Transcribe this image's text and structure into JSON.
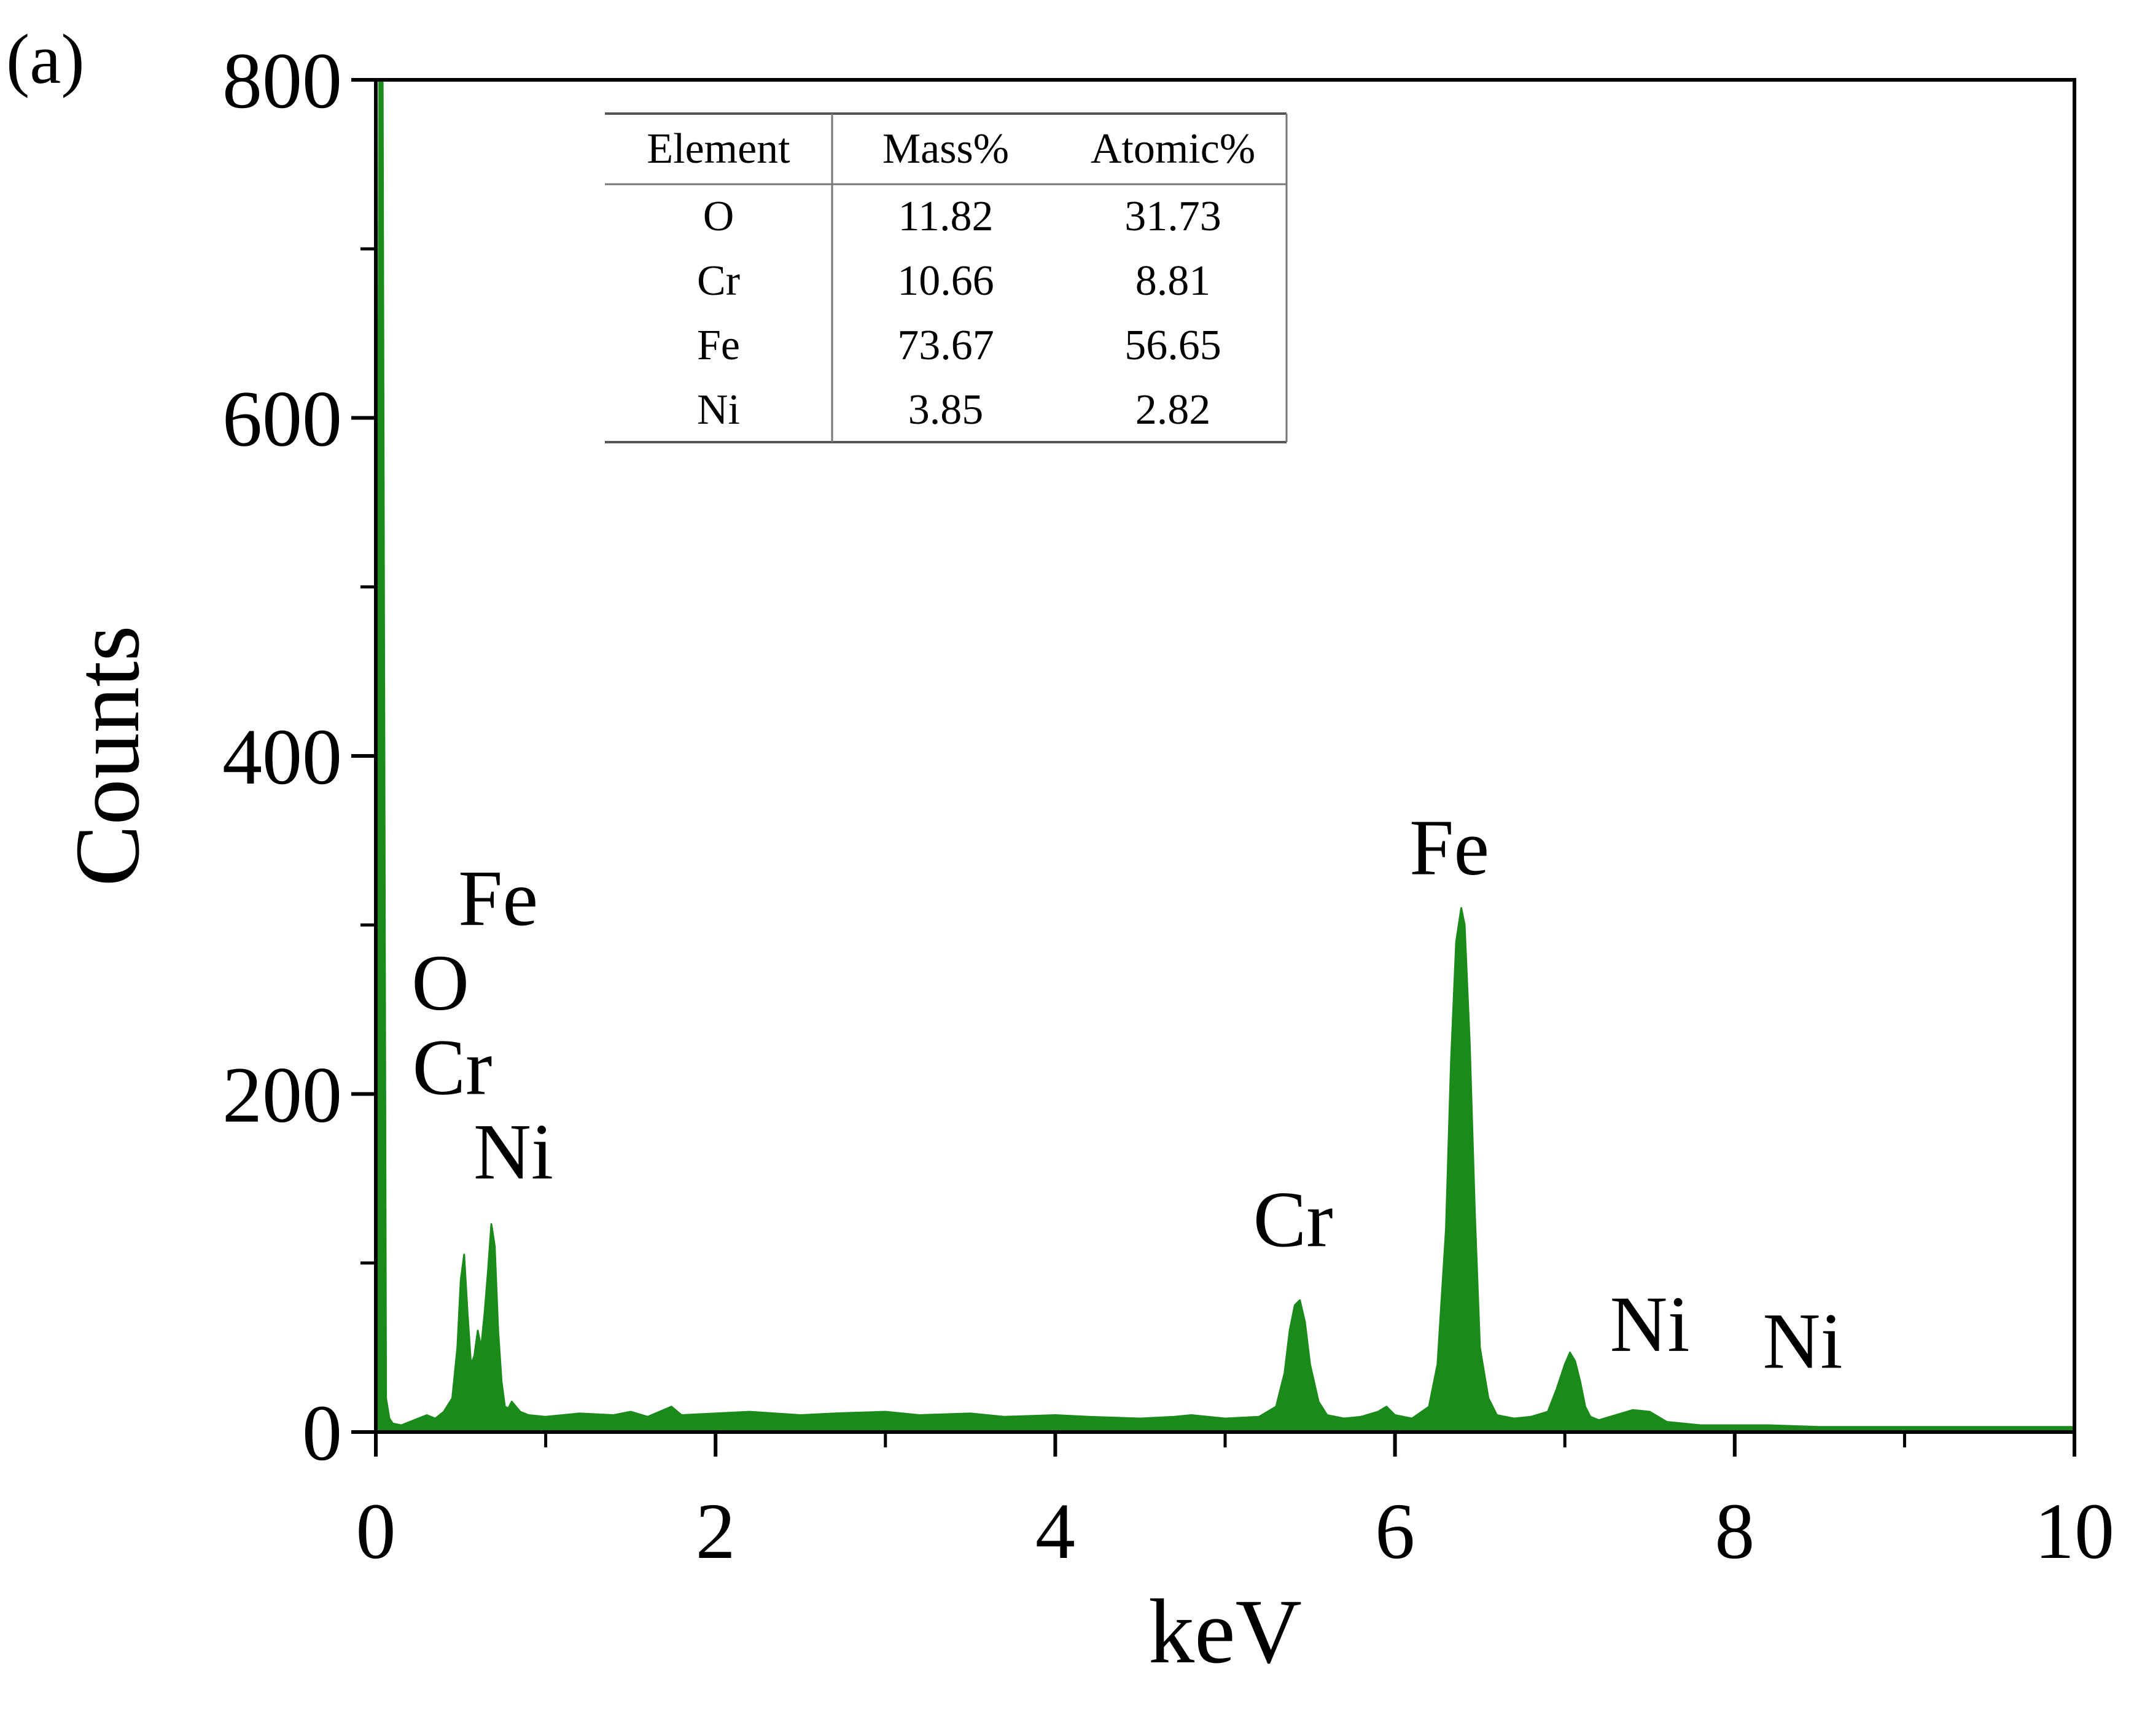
{
  "panel_label": "(a)",
  "chart_data": {
    "type": "area",
    "xlabel": "keV",
    "ylabel": "Counts",
    "xlim": [
      0,
      10
    ],
    "ylim": [
      0,
      800
    ],
    "x_ticks": [
      0,
      2,
      4,
      6,
      8,
      10
    ],
    "x_tick_labels": [
      "0",
      "2",
      "4",
      "6",
      "8",
      "10"
    ],
    "y_ticks": [
      0,
      200,
      400,
      600,
      800
    ],
    "y_tick_labels": [
      "0",
      "200",
      "400",
      "600",
      "800"
    ],
    "grid": false,
    "fill_color": "#1a8a1a",
    "series": [
      {
        "x": [
          0.0,
          0.02,
          0.04,
          0.06,
          0.08,
          0.1,
          0.15,
          0.2,
          0.25,
          0.3,
          0.35,
          0.4,
          0.45,
          0.48,
          0.5,
          0.52,
          0.54,
          0.56,
          0.58,
          0.6,
          0.62,
          0.64,
          0.66,
          0.68,
          0.7,
          0.72,
          0.74,
          0.76,
          0.78,
          0.8,
          0.85,
          0.9,
          1.0,
          1.2,
          1.4,
          1.5,
          1.6,
          1.74,
          1.8,
          2.0,
          2.2,
          2.5,
          2.7,
          3.0,
          3.2,
          3.5,
          3.7,
          4.0,
          4.2,
          4.5,
          4.7,
          4.8,
          5.0,
          5.2,
          5.3,
          5.35,
          5.38,
          5.41,
          5.44,
          5.47,
          5.5,
          5.55,
          5.6,
          5.7,
          5.8,
          5.9,
          5.95,
          6.0,
          6.1,
          6.2,
          6.25,
          6.3,
          6.33,
          6.36,
          6.39,
          6.41,
          6.44,
          6.47,
          6.5,
          6.55,
          6.6,
          6.7,
          6.8,
          6.9,
          6.95,
          7.0,
          7.03,
          7.06,
          7.09,
          7.12,
          7.15,
          7.2,
          7.3,
          7.4,
          7.5,
          7.6,
          7.7,
          7.8,
          8.0,
          8.2,
          8.5,
          9.0,
          9.5,
          10.0
        ],
        "y": [
          0,
          800,
          800,
          20,
          8,
          5,
          4,
          6,
          8,
          10,
          8,
          12,
          20,
          50,
          90,
          105,
          70,
          40,
          45,
          60,
          50,
          70,
          95,
          123,
          110,
          60,
          30,
          15,
          14,
          18,
          12,
          10,
          9,
          11,
          10,
          12,
          9,
          15,
          10,
          11,
          12,
          10,
          11,
          12,
          10,
          11,
          9,
          10,
          9,
          8,
          9,
          10,
          8,
          9,
          15,
          35,
          60,
          75,
          78,
          65,
          40,
          18,
          10,
          8,
          9,
          12,
          15,
          10,
          8,
          15,
          40,
          120,
          220,
          290,
          310,
          300,
          230,
          130,
          50,
          20,
          10,
          8,
          9,
          12,
          25,
          40,
          47,
          42,
          30,
          15,
          9,
          7,
          10,
          13,
          12,
          6,
          5,
          4,
          4,
          4,
          3,
          3,
          3,
          3
        ]
      }
    ],
    "annotations": [
      {
        "text": "Fe",
        "x": 0.72,
        "y": 300
      },
      {
        "text": "O",
        "x": 0.38,
        "y": 250
      },
      {
        "text": "Cr",
        "x": 0.45,
        "y": 200
      },
      {
        "text": "Ni",
        "x": 0.81,
        "y": 150
      },
      {
        "text": "Cr",
        "x": 5.4,
        "y": 110
      },
      {
        "text": "Fe",
        "x": 6.32,
        "y": 330
      },
      {
        "text": "Ni",
        "x": 7.5,
        "y": 48
      },
      {
        "text": "Ni",
        "x": 8.4,
        "y": 38
      }
    ],
    "inset_table": {
      "headers": [
        "Element",
        "Mass%",
        "Atomic%"
      ],
      "rows": [
        [
          "O",
          "11.82",
          "31.73"
        ],
        [
          "Cr",
          "10.66",
          "8.81"
        ],
        [
          "Fe",
          "73.67",
          "56.65"
        ],
        [
          "Ni",
          "3.85",
          "2.82"
        ]
      ]
    }
  }
}
